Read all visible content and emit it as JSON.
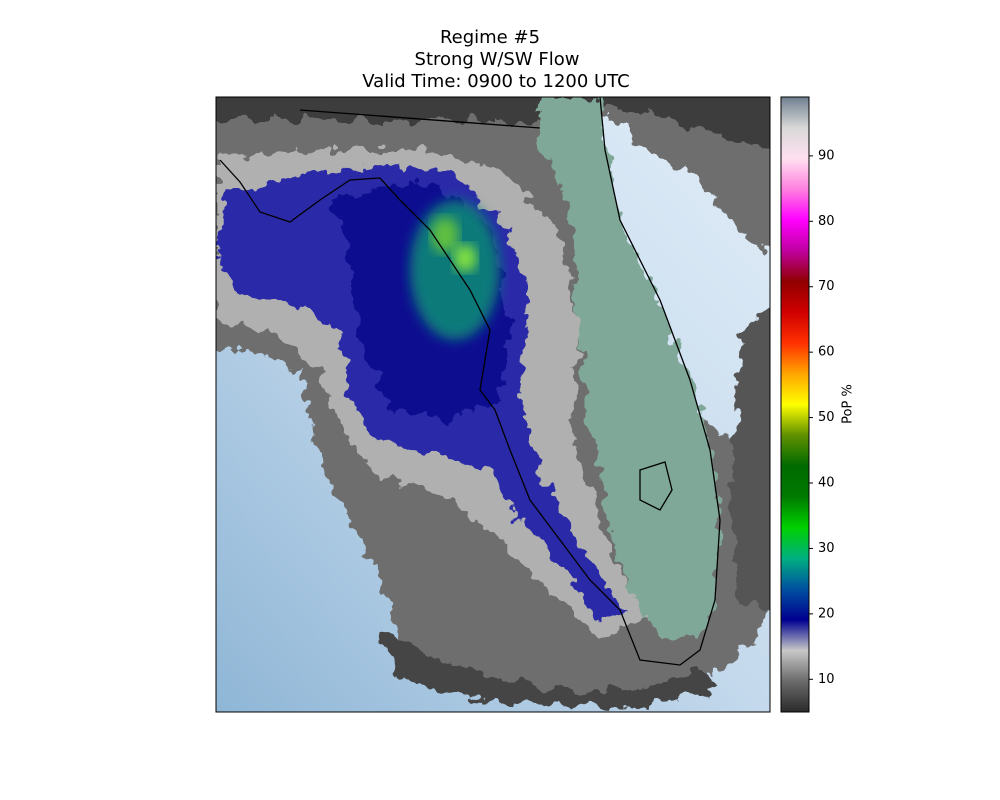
{
  "chart_data": {
    "type": "map",
    "title": [
      "Regime #5",
      "Strong W/SW Flow",
      "Valid Time: 0900 to 1200 UTC"
    ],
    "colorbar": {
      "label": "PoP %",
      "lim": [
        5,
        99
      ],
      "ticks": [
        10,
        20,
        30,
        40,
        50,
        60,
        70,
        80,
        90
      ],
      "colors": [
        "#2b2b2b",
        "#6a6a6a",
        "#c8c8c8",
        "#000090",
        "#0050a0",
        "#00b080",
        "#00d000",
        "#007a00",
        "#006a00",
        "#609000",
        "#ffff00",
        "#ffa500",
        "#ff3000",
        "#d00000",
        "#900000",
        "#c000a0",
        "#ff00ff",
        "#ff80e0",
        "#ffe0f0",
        "#d8d8d8",
        "#708090"
      ]
    }
  }
}
